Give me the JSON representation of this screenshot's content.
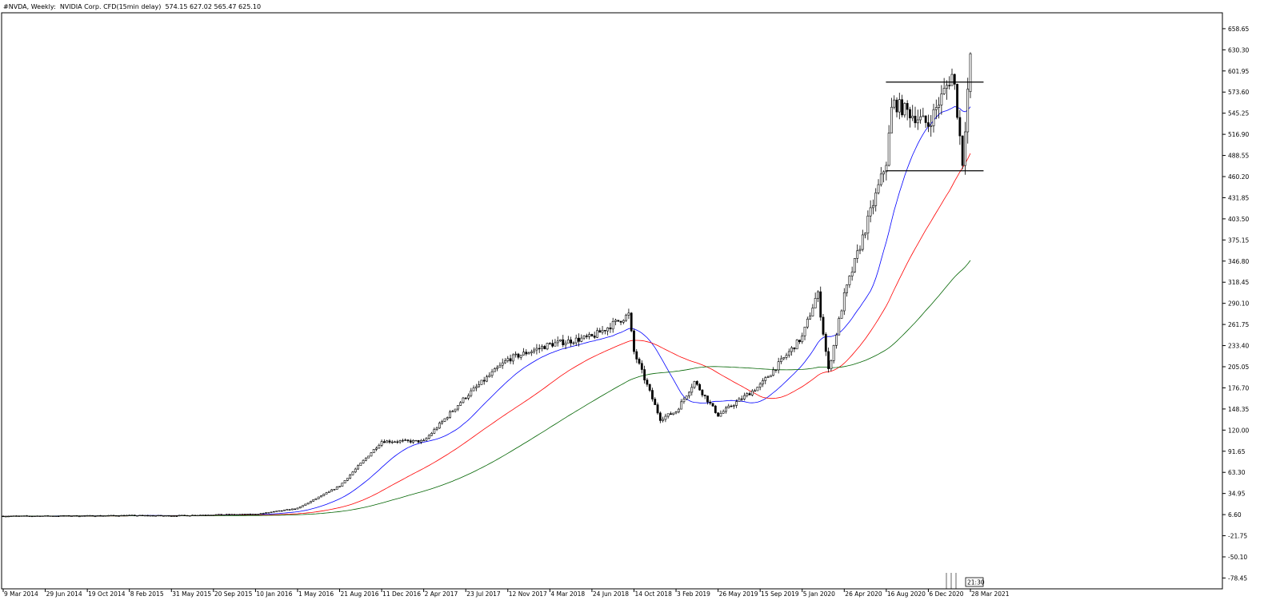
{
  "header": {
    "symbol_line": "#NVDA, Weekly:  NVIDIA Corp. CFD(15min delay)",
    "ohlc_line": "574.15 627.02 565.47 625.10"
  },
  "time_badge": "21:30",
  "colors": {
    "up_candle": "#ffffff",
    "down_candle": "#000000",
    "ma_fast": "#0000ff",
    "ma_mid": "#ff0000",
    "ma_slow": "#006400",
    "level_lines": "#000000"
  },
  "chart_data": {
    "type": "candlestick",
    "timeframe": "Weekly",
    "ylim": [
      -93,
      680
    ],
    "y_ticks": [
      658.65,
      630.3,
      601.95,
      573.6,
      545.25,
      516.9,
      488.55,
      460.2,
      431.85,
      403.5,
      375.15,
      346.8,
      318.45,
      290.1,
      261.75,
      233.4,
      205.05,
      176.7,
      148.35,
      120.0,
      91.65,
      63.3,
      34.95,
      6.6,
      -21.75,
      -50.1,
      -78.45
    ],
    "x_tick_labels": [
      "9 Mar 2014",
      "29 Jun 2014",
      "19 Oct 2014",
      "8 Feb 2015",
      "31 May 2015",
      "20 Sep 2015",
      "10 Jan 2016",
      "1 May 2016",
      "21 Aug 2016",
      "11 Dec 2016",
      "2 Apr 2017",
      "23 Jul 2017",
      "12 Nov 2017",
      "4 Mar 2018",
      "24 Jun 2018",
      "14 Oct 2018",
      "3 Feb 2019",
      "26 May 2019",
      "15 Sep 2019",
      "5 Jan 2020",
      "26 Apr 2020",
      "16 Aug 2020",
      "6 Dec 2020",
      "28 Mar 2021"
    ],
    "close_anchors": [
      {
        "date": "9 Mar 2014",
        "close": 4.6
      },
      {
        "date": "29 Jun 2014",
        "close": 4.8
      },
      {
        "date": "19 Oct 2014",
        "close": 5.0
      },
      {
        "date": "8 Feb 2015",
        "close": 5.5
      },
      {
        "date": "31 May 2015",
        "close": 5.0
      },
      {
        "date": "20 Sep 2015",
        "close": 6.5
      },
      {
        "date": "10 Jan 2016",
        "close": 7.0
      },
      {
        "date": "1 May 2016",
        "close": 15.0
      },
      {
        "date": "21 Aug 2016",
        "close": 45.0
      },
      {
        "date": "11 Dec 2016",
        "close": 105.0
      },
      {
        "date": "2 Apr 2017",
        "close": 105.0
      },
      {
        "date": "23 Jul 2017",
        "close": 165.0
      },
      {
        "date": "12 Nov 2017",
        "close": 215.0
      },
      {
        "date": "4 Mar 2018",
        "close": 235.0
      },
      {
        "date": "24 Jun 2018",
        "close": 245.0
      },
      {
        "date": "30 Sep 2018",
        "close": 275.0
      },
      {
        "date": "14 Oct 2018",
        "close": 225.0
      },
      {
        "date": "23 Dec 2018",
        "close": 135.0
      },
      {
        "date": "3 Feb 2019",
        "close": 145.0
      },
      {
        "date": "24 Mar 2019",
        "close": 185.0
      },
      {
        "date": "26 May 2019",
        "close": 140.0
      },
      {
        "date": "15 Sep 2019",
        "close": 180.0
      },
      {
        "date": "5 Jan 2020",
        "close": 245.0
      },
      {
        "date": "15 Feb 2020",
        "close": 305.0
      },
      {
        "date": "15 Mar 2020",
        "close": 200.0
      },
      {
        "date": "26 Apr 2020",
        "close": 300.0
      },
      {
        "date": "16 Aug 2020",
        "close": 480.0
      },
      {
        "date": "1 Sep 2020",
        "close": 560.0
      },
      {
        "date": "6 Dec 2020",
        "close": 530.0
      },
      {
        "date": "10 Feb 2021",
        "close": 600.0
      },
      {
        "date": "7 Mar 2021",
        "close": 480.0
      },
      {
        "date": "28 Mar 2021",
        "close": 625.1
      }
    ],
    "last_bar": {
      "open": 574.15,
      "high": 627.02,
      "low": 565.47,
      "close": 625.1
    },
    "horizontal_levels": [
      {
        "price": 587.0,
        "from": "Aug 2020",
        "to": "Apr 2021"
      },
      {
        "price": 468.0,
        "from": "Aug 2020",
        "to": "Apr 2021"
      }
    ],
    "moving_averages": [
      {
        "color": "#0000ff"
      },
      {
        "color": "#ff0000"
      },
      {
        "color": "#006400"
      }
    ],
    "grid": false
  }
}
